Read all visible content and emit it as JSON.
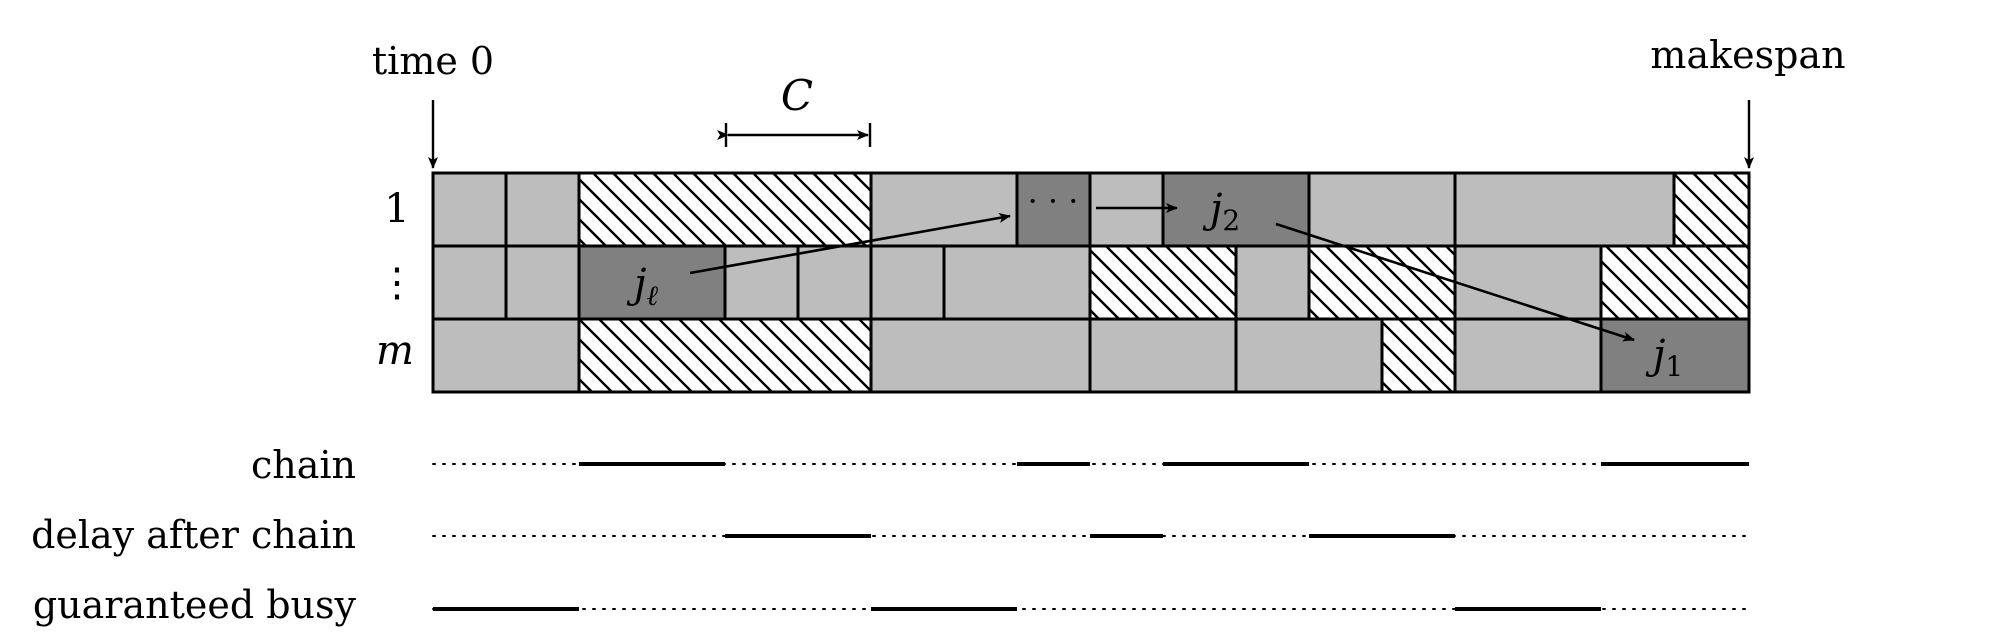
{
  "labels": {
    "time_start": "time 0",
    "makespan": "makespan",
    "interval": "C",
    "machine_first": "1",
    "machine_dots": "⋮",
    "machine_last": "m",
    "job_l_base": "j",
    "job_l_sub": "ℓ",
    "job_2_base": "j",
    "job_2_sub": "2",
    "job_1_base": "j",
    "job_1_sub": "1",
    "chain_dots": "· · ·"
  },
  "rows": [
    {
      "label": "chain"
    },
    {
      "label": "delay after chain"
    },
    {
      "label": "guaranteed busy"
    }
  ],
  "colors": {
    "light_job": "#bdbdbd",
    "chain_job": "#808080",
    "outline": "#000000",
    "hatch": "#000000"
  }
}
